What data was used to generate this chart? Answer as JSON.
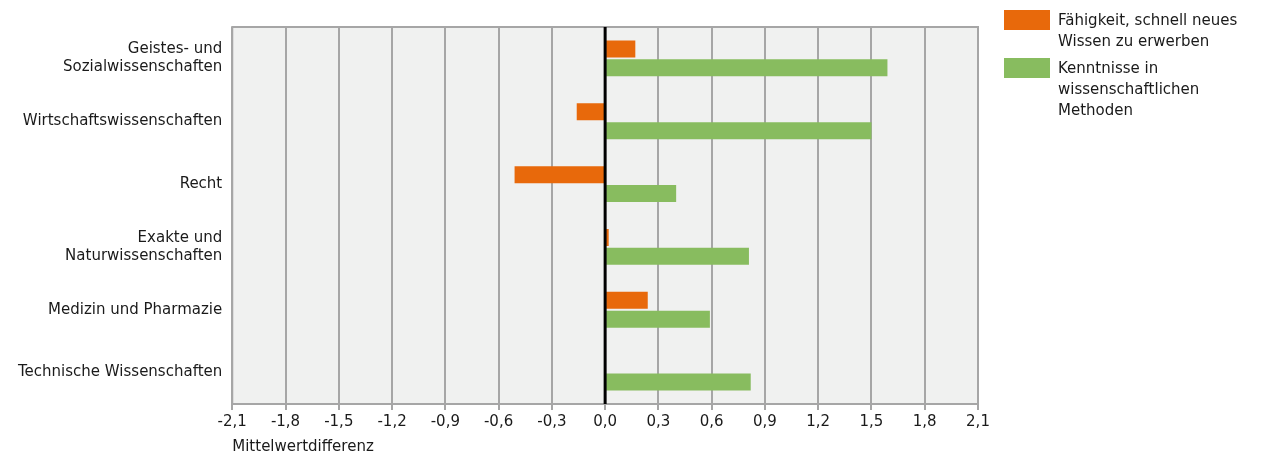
{
  "chart_data": {
    "type": "bar",
    "orientation": "horizontal",
    "xlabel": "Mittelwertdifferenz",
    "categories": [
      "Geistes- und Sozialwissenschaften",
      "Wirtschaftswissenschaften",
      "Recht",
      "Exakte und Naturwissenschaften",
      "Medizin und Pharmazie",
      "Technische Wissenschaften"
    ],
    "series": [
      {
        "name": "Fähigkeit, schnell neues Wissen zu erwerben",
        "color": "#e8690b",
        "values": [
          0.17,
          -0.16,
          -0.51,
          0.02,
          0.24,
          0
        ]
      },
      {
        "name": "Kenntnisse in wissenschaftlichen Methoden",
        "color": "#88bc5f",
        "values": [
          1.59,
          1.5,
          0.4,
          0.81,
          0.59,
          0.82
        ]
      }
    ],
    "xlim": [
      -2.1,
      2.1
    ],
    "xticks": [
      {
        "value": -2.1,
        "label": "-2,1"
      },
      {
        "value": -1.8,
        "label": "-1,8"
      },
      {
        "value": -1.5,
        "label": "-1,5"
      },
      {
        "value": -1.2,
        "label": "-1,2"
      },
      {
        "value": -0.9,
        "label": "-0,9"
      },
      {
        "value": -0.6,
        "label": "-0,6"
      },
      {
        "value": -0.3,
        "label": "-0,3"
      },
      {
        "value": 0,
        "label": "0,0"
      },
      {
        "value": 0.3,
        "label": "0,3"
      },
      {
        "value": 0.6,
        "label": "0,6"
      },
      {
        "value": 0.9,
        "label": "0,9"
      },
      {
        "value": 1.2,
        "label": "1,2"
      },
      {
        "value": 1.5,
        "label": "1,5"
      },
      {
        "value": 1.8,
        "label": "1,8"
      },
      {
        "value": 2.1,
        "label": "2,1"
      }
    ],
    "ref_lines": [
      {
        "axis": "x",
        "value": 0,
        "color": "#000000"
      }
    ],
    "grid": "x",
    "legend": "top right"
  }
}
